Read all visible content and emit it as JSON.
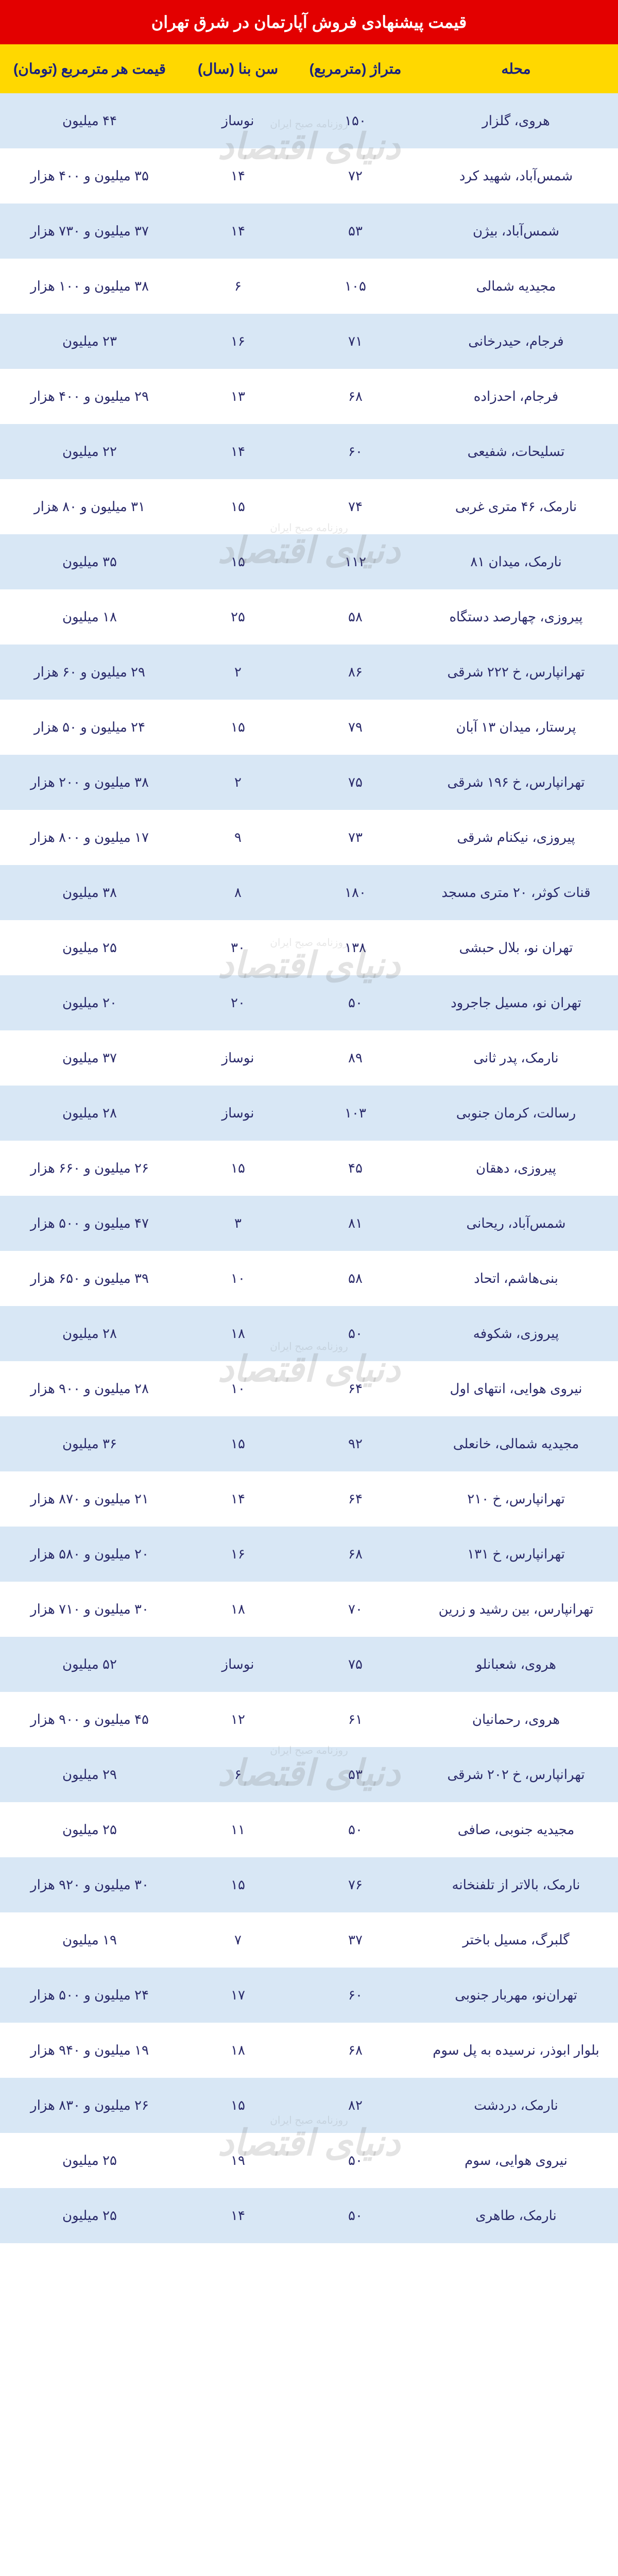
{
  "title": "قیمت پیشنهادی فروش آپارتمان در شرق تهران",
  "headers": {
    "mahalle": "محله",
    "metrazh": "متراژ\n(مترمربع)",
    "sen": "سن بنا\n(سال)",
    "gheymat": "قیمت هر مترمربع\n(تومان)"
  },
  "rows": [
    {
      "mahalle": "هروی، گلزار",
      "metrazh": "۱۵۰",
      "sen": "نوساز",
      "gheymat": "۴۴ میلیون"
    },
    {
      "mahalle": "شمس‌آباد، شهید کرد",
      "metrazh": "۷۲",
      "sen": "۱۴",
      "gheymat": "۳۵ میلیون و ۴۰۰ هزار"
    },
    {
      "mahalle": "شمس‌آباد، بیژن",
      "metrazh": "۵۳",
      "sen": "۱۴",
      "gheymat": "۳۷ میلیون و ۷۳۰ هزار"
    },
    {
      "mahalle": "مجیدیه شمالی",
      "metrazh": "۱۰۵",
      "sen": "۶",
      "gheymat": "۳۸ میلیون و ۱۰۰ هزار"
    },
    {
      "mahalle": "فرجام، حیدرخانی",
      "metrazh": "۷۱",
      "sen": "۱۶",
      "gheymat": "۲۳ میلیون"
    },
    {
      "mahalle": "فرجام، احدزاده",
      "metrazh": "۶۸",
      "sen": "۱۳",
      "gheymat": "۲۹ میلیون و ۴۰۰ هزار"
    },
    {
      "mahalle": "تسلیحات، شفیعی",
      "metrazh": "۶۰",
      "sen": "۱۴",
      "gheymat": "۲۲ میلیون"
    },
    {
      "mahalle": "نارمک، ۴۶ متری غربی",
      "metrazh": "۷۴",
      "sen": "۱۵",
      "gheymat": "۳۱ میلیون و ۸۰ هزار"
    },
    {
      "mahalle": "نارمک، میدان ۸۱",
      "metrazh": "۱۱۲",
      "sen": "۱۵",
      "gheymat": "۳۵ میلیون"
    },
    {
      "mahalle": "پیروزی، چهارصد دستگاه",
      "metrazh": "۵۸",
      "sen": "۲۵",
      "gheymat": "۱۸ میلیون"
    },
    {
      "mahalle": "تهرانپارس، خ ۲۲۲ شرقی",
      "metrazh": "۸۶",
      "sen": "۲",
      "gheymat": "۲۹ میلیون و ۶۰ هزار"
    },
    {
      "mahalle": "پرستار، میدان ۱۳ آبان",
      "metrazh": "۷۹",
      "sen": "۱۵",
      "gheymat": "۲۴ میلیون و ۵۰ هزار"
    },
    {
      "mahalle": "تهرانپارس، خ ۱۹۶ شرقی",
      "metrazh": "۷۵",
      "sen": "۲",
      "gheymat": "۳۸ میلیون و ۲۰۰ هزار"
    },
    {
      "mahalle": "پیروزی، نیکنام شرقی",
      "metrazh": "۷۳",
      "sen": "۹",
      "gheymat": "۱۷ میلیون و ۸۰۰ هزار"
    },
    {
      "mahalle": "قنات کوثر، ۲۰ متری مسجد",
      "metrazh": "۱۸۰",
      "sen": "۸",
      "gheymat": "۳۸ میلیون"
    },
    {
      "mahalle": "تهران نو، بلال حبشی",
      "metrazh": "۱۳۸",
      "sen": "۳۰",
      "gheymat": "۲۵ میلیون"
    },
    {
      "mahalle": "تهران نو، مسیل جاجرود",
      "metrazh": "۵۰",
      "sen": "۲۰",
      "gheymat": "۲۰ میلیون"
    },
    {
      "mahalle": "نارمک، پدر ثانی",
      "metrazh": "۸۹",
      "sen": "نوساز",
      "gheymat": "۳۷ میلیون"
    },
    {
      "mahalle": "رسالت، کرمان جنوبی",
      "metrazh": "۱۰۳",
      "sen": "نوساز",
      "gheymat": "۲۸ میلیون"
    },
    {
      "mahalle": "پیروزی، دهقان",
      "metrazh": "۴۵",
      "sen": "۱۵",
      "gheymat": "۲۶ میلیون و ۶۶۰ هزار"
    },
    {
      "mahalle": "شمس‌آباد، ریحانی",
      "metrazh": "۸۱",
      "sen": "۳",
      "gheymat": "۴۷ میلیون و ۵۰۰ هزار"
    },
    {
      "mahalle": "بنی‌هاشم، اتحاد",
      "metrazh": "۵۸",
      "sen": "۱۰",
      "gheymat": "۳۹ میلیون و ۶۵۰ هزار"
    },
    {
      "mahalle": "پیروزی، شکوفه",
      "metrazh": "۵۰",
      "sen": "۱۸",
      "gheymat": "۲۸ میلیون"
    },
    {
      "mahalle": "نیروی هوایی، انتهای اول",
      "metrazh": "۶۴",
      "sen": "۱۰",
      "gheymat": "۲۸ میلیون و ۹۰۰ هزار"
    },
    {
      "mahalle": "مجیدیه شمالی، خانعلی",
      "metrazh": "۹۲",
      "sen": "۱۵",
      "gheymat": "۳۶ میلیون"
    },
    {
      "mahalle": "تهرانپارس، خ ۲۱۰",
      "metrazh": "۶۴",
      "sen": "۱۴",
      "gheymat": "۲۱ میلیون و ۸۷۰ هزار"
    },
    {
      "mahalle": "تهرانپارس، خ ۱۳۱",
      "metrazh": "۶۸",
      "sen": "۱۶",
      "gheymat": "۲۰ میلیون و ۵۸۰ هزار"
    },
    {
      "mahalle": "تهرانپارس، بین رشید و زرین",
      "metrazh": "۷۰",
      "sen": "۱۸",
      "gheymat": "۳۰ میلیون و ۷۱۰ هزار"
    },
    {
      "mahalle": "هروی، شعبانلو",
      "metrazh": "۷۵",
      "sen": "نوساز",
      "gheymat": "۵۲ میلیون"
    },
    {
      "mahalle": "هروی، رحمانیان",
      "metrazh": "۶۱",
      "sen": "۱۲",
      "gheymat": "۴۵ میلیون و ۹۰۰ هزار"
    },
    {
      "mahalle": "تهرانپارس، خ ۲۰۲ شرقی",
      "metrazh": "۵۳",
      "sen": "۶",
      "gheymat": "۲۹ میلیون"
    },
    {
      "mahalle": "مجیدیه جنوبی، صافی",
      "metrazh": "۵۰",
      "sen": "۱۱",
      "gheymat": "۲۵ میلیون"
    },
    {
      "mahalle": "نارمک، بالاتر از تلفنخانه",
      "metrazh": "۷۶",
      "sen": "۱۵",
      "gheymat": "۳۰ میلیون و ۹۲۰ هزار"
    },
    {
      "mahalle": "گلبرگ، مسیل باختر",
      "metrazh": "۳۷",
      "sen": "۷",
      "gheymat": "۱۹ میلیون"
    },
    {
      "mahalle": "تهران‌نو، مهربار جنوبی",
      "metrazh": "۶۰",
      "sen": "۱۷",
      "gheymat": "۲۴ میلیون و ۵۰۰ هزار"
    },
    {
      "mahalle": "بلوار ابوذر، نرسیده به پل سوم",
      "metrazh": "۶۸",
      "sen": "۱۸",
      "gheymat": "۱۹ میلیون و ۹۴۰ هزار"
    },
    {
      "mahalle": "نارمک، دردشت",
      "metrazh": "۸۲",
      "sen": "۱۵",
      "gheymat": "۲۶ میلیون و ۸۳۰ هزار"
    },
    {
      "mahalle": "نیروی هوایی، سوم",
      "metrazh": "۵۰",
      "sen": "۱۹",
      "gheymat": "۲۵ میلیون"
    },
    {
      "mahalle": "نارمک، طاهری",
      "metrazh": "۵۰",
      "sen": "۱۴",
      "gheymat": "۲۵ میلیون"
    }
  ],
  "watermark": {
    "main": "دنیای اقتصاد",
    "sub": "روزنامه صبح ایران"
  },
  "styling": {
    "title_bg": "#e30000",
    "title_color": "#ffffff",
    "title_fontsize": 32,
    "header_bg": "#ffd800",
    "header_color": "#1a237e",
    "header_fontsize": 28,
    "row_odd_bg": "#d8e7f5",
    "row_even_bg": "#ffffff",
    "cell_color": "#2a2a6a",
    "cell_fontsize": 26,
    "col_widths": {
      "mahalle": "33%",
      "metrazh": "19%",
      "sen": "19%",
      "gheymat": "29%"
    }
  }
}
